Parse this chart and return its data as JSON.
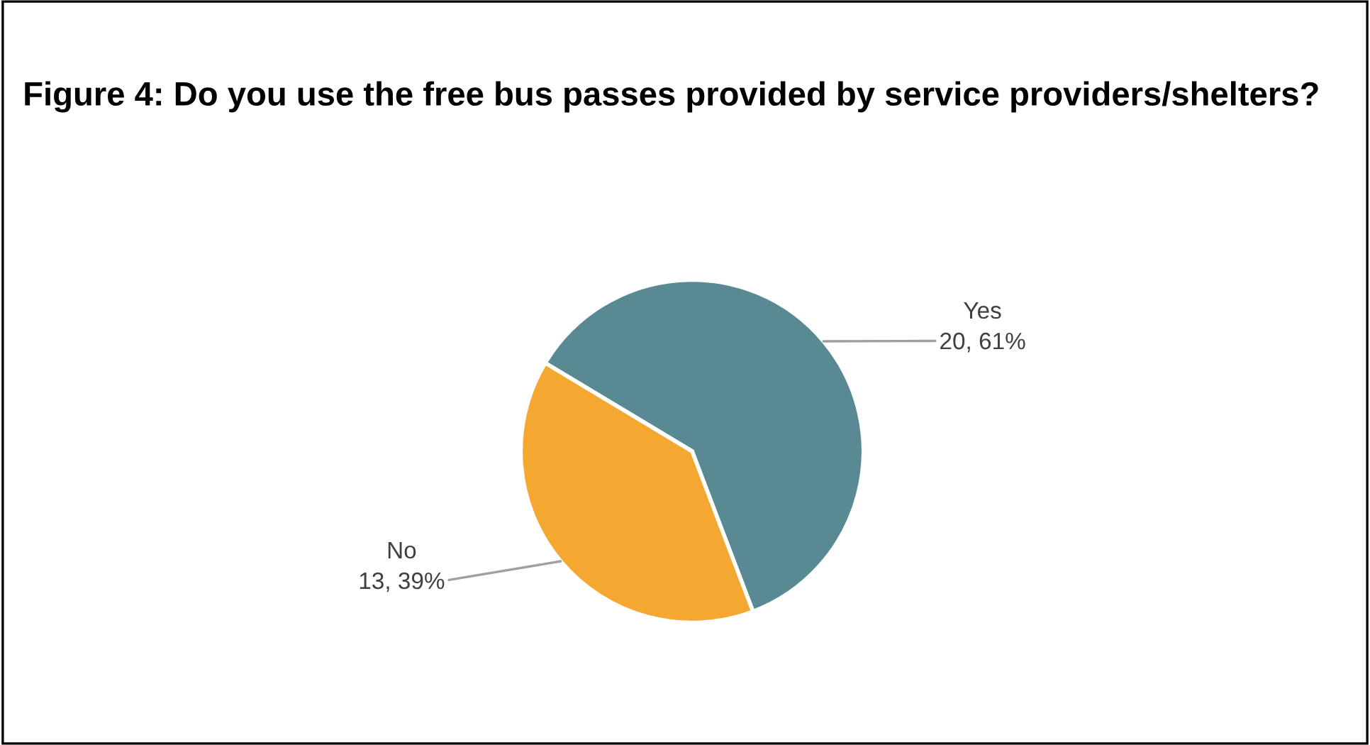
{
  "chart_data": {
    "type": "pie",
    "title": "Figure 4: Do you use the free bus passes provided by service providers/shelters?",
    "categories": [
      "Yes",
      "No"
    ],
    "values": [
      20,
      13
    ],
    "colors": [
      "#598a94",
      "#f4a731"
    ],
    "value_labels": [
      "20, 61%",
      "13, 39%"
    ],
    "legend": false
  }
}
